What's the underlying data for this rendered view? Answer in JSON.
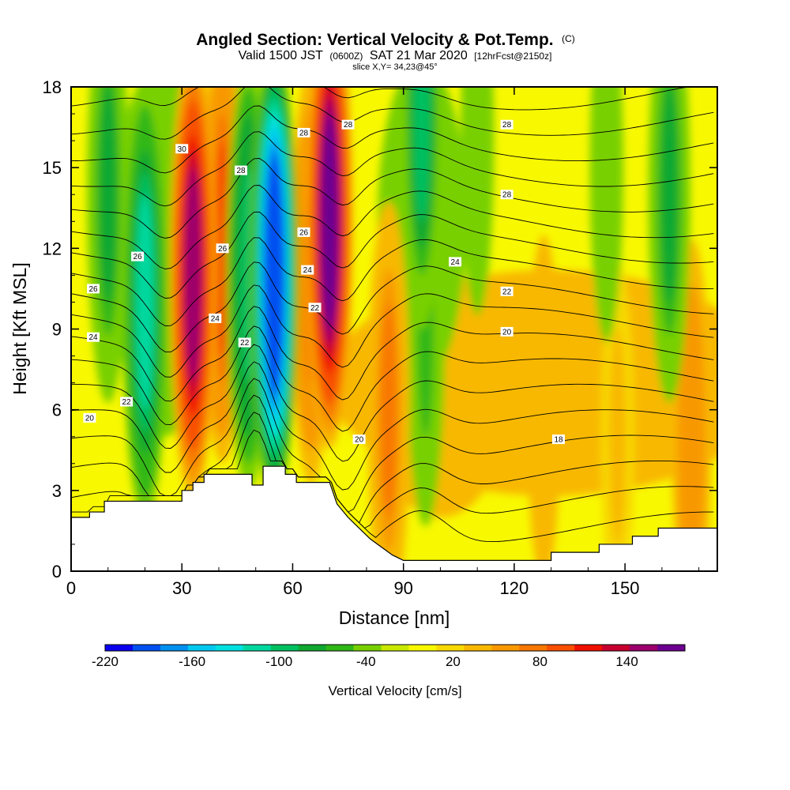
{
  "chart_data": {
    "type": "heatmap",
    "title": "Angled Section: Vertical Velocity & Pot.Temp.",
    "title_units": "(C)",
    "subtitle_valid": "Valid 1500 JST",
    "subtitle_utc": "(0600Z)",
    "subtitle_date": "SAT 21 Mar 2020",
    "subtitle_fcst": "[12hrFcst@2150z]",
    "slice_text": "slice X,Y= 34,23@45°",
    "xlabel": "Distance [nm]",
    "ylabel": "Height [Kft MSL]",
    "xlim": [
      0,
      175
    ],
    "ylim": [
      0,
      18
    ],
    "x_ticks": [
      "0",
      "30",
      "60",
      "90",
      "120",
      "150"
    ],
    "y_ticks": [
      "0",
      "3",
      "6",
      "9",
      "12",
      "15",
      "18"
    ],
    "colorbar": {
      "label": "Vertical Velocity [cm/s]",
      "tick_labels": [
        "-220",
        "-160",
        "-100",
        "-40",
        "20",
        "80",
        "140"
      ],
      "tick_values": [
        -220,
        -160,
        -100,
        -40,
        20,
        80,
        140
      ],
      "min": -220,
      "max": 180,
      "colors": [
        "#0a00f0",
        "#0050f0",
        "#0090f0",
        "#00c8f0",
        "#00e0e0",
        "#00d8a0",
        "#00c060",
        "#10a830",
        "#30b818",
        "#78d000",
        "#c8e800",
        "#f8f800",
        "#f8d800",
        "#f8b800",
        "#f89800",
        "#f87800",
        "#f85000",
        "#f01000",
        "#c80030",
        "#9c006c",
        "#6c0090"
      ]
    },
    "velocity_features": [
      {
        "x": 33,
        "y": 11,
        "value": 150
      },
      {
        "x": 41,
        "y": 12,
        "value": 90
      },
      {
        "x": 55,
        "y": 11,
        "value": -200
      },
      {
        "x": 48,
        "y": 11,
        "value": -100
      },
      {
        "x": 70,
        "y": 13,
        "value": 170
      },
      {
        "x": 65,
        "y": 11,
        "value": 80
      },
      {
        "x": 20,
        "y": 10,
        "value": -110
      },
      {
        "x": 10,
        "y": 14,
        "value": -70
      },
      {
        "x": 95,
        "y": 17,
        "value": -90
      },
      {
        "x": 96,
        "y": 9,
        "value": -55
      },
      {
        "x": 86,
        "y": 6,
        "value": 70
      },
      {
        "x": 110,
        "y": 16,
        "value": -45
      },
      {
        "x": 145,
        "y": 15,
        "value": -45
      },
      {
        "x": 162,
        "y": 14,
        "value": -70
      },
      {
        "x": 128,
        "y": 6,
        "value": 45
      },
      {
        "x": 168,
        "y": 5,
        "value": 60
      },
      {
        "x": 148,
        "y": 5,
        "value": 30
      }
    ],
    "theta_contour_labels": [
      "30",
      "28",
      "28",
      "28",
      "28",
      "28",
      "26",
      "26",
      "26",
      "26",
      "24",
      "24",
      "24",
      "24",
      "22",
      "22",
      "22",
      "22",
      "20",
      "20",
      "20",
      "18"
    ],
    "terrain_height_kft": [
      [
        0,
        2.0
      ],
      [
        5,
        2.0
      ],
      [
        5,
        2.2
      ],
      [
        9,
        2.2
      ],
      [
        9,
        2.6
      ],
      [
        30,
        2.6
      ],
      [
        30,
        3.0
      ],
      [
        33,
        3.0
      ],
      [
        33,
        3.3
      ],
      [
        36,
        3.3
      ],
      [
        36,
        3.6
      ],
      [
        49,
        3.6
      ],
      [
        49,
        3.2
      ],
      [
        52,
        3.2
      ],
      [
        52,
        3.9
      ],
      [
        58,
        3.9
      ],
      [
        58,
        3.6
      ],
      [
        61,
        3.6
      ],
      [
        61,
        3.3
      ],
      [
        70,
        3.3
      ],
      [
        72,
        2.5
      ],
      [
        75,
        2.0
      ],
      [
        78,
        1.6
      ],
      [
        81,
        1.2
      ],
      [
        84,
        0.9
      ],
      [
        87,
        0.6
      ],
      [
        90,
        0.4
      ],
      [
        130,
        0.4
      ],
      [
        130,
        0.7
      ],
      [
        143,
        0.7
      ],
      [
        143,
        1.0
      ],
      [
        152,
        1.0
      ],
      [
        152,
        1.3
      ],
      [
        159,
        1.3
      ],
      [
        159,
        1.6
      ],
      [
        175,
        1.6
      ]
    ]
  }
}
